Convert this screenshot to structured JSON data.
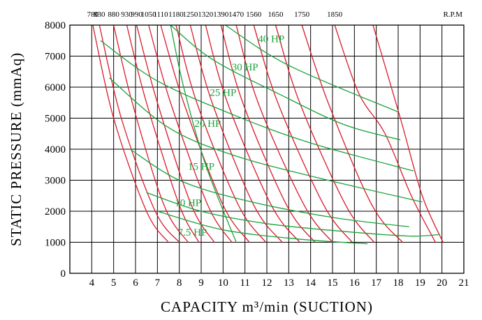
{
  "chart_data": {
    "type": "line",
    "xlabel": "CAPACITY m³/min (SUCTION)",
    "ylabel": "STATIC PRESSURE (mmAq)",
    "xlim": [
      3,
      21
    ],
    "ylim": [
      0,
      8000
    ],
    "x_ticks": [
      4,
      5,
      6,
      7,
      8,
      9,
      10,
      11,
      12,
      13,
      14,
      15,
      16,
      17,
      18,
      19,
      20,
      21
    ],
    "y_ticks": [
      0,
      1000,
      2000,
      3000,
      4000,
      5000,
      6000,
      7000,
      8000
    ],
    "grid": true,
    "rpm_unit_label": "R.P.M",
    "rpm_series": [
      {
        "label": "780",
        "points": [
          [
            4.05,
            8000
          ],
          [
            5.0,
            5000
          ],
          [
            6.5,
            2000
          ],
          [
            7.5,
            1000
          ]
        ]
      },
      {
        "label": "830",
        "points": [
          [
            4.35,
            8000
          ],
          [
            5.35,
            5000
          ],
          [
            6.9,
            2000
          ],
          [
            8.0,
            1000
          ]
        ]
      },
      {
        "label": "880",
        "points": [
          [
            5.0,
            8000
          ],
          [
            5.85,
            5500
          ],
          [
            7.3,
            2200
          ],
          [
            8.4,
            1000
          ]
        ]
      },
      {
        "label": "930",
        "points": [
          [
            5.6,
            8000
          ],
          [
            6.5,
            5500
          ],
          [
            8.0,
            2200
          ],
          [
            8.9,
            1000
          ]
        ]
      },
      {
        "label": "990",
        "points": [
          [
            6.05,
            8000
          ],
          [
            7.0,
            5500
          ],
          [
            8.55,
            2200
          ],
          [
            9.6,
            1000
          ]
        ]
      },
      {
        "label": "1050",
        "points": [
          [
            6.6,
            8000
          ],
          [
            7.6,
            5500
          ],
          [
            9.3,
            2200
          ],
          [
            10.4,
            1000
          ]
        ]
      },
      {
        "label": "1110",
        "points": [
          [
            7.15,
            8000
          ],
          [
            8.2,
            5500
          ],
          [
            10.0,
            2200
          ],
          [
            11.2,
            1000
          ]
        ]
      },
      {
        "label": "1180",
        "points": [
          [
            7.85,
            8000
          ],
          [
            8.8,
            5500
          ],
          [
            10.7,
            2200
          ],
          [
            11.95,
            1000
          ]
        ]
      },
      {
        "label": "1250",
        "points": [
          [
            8.5,
            8000
          ],
          [
            9.5,
            5500
          ],
          [
            11.4,
            2200
          ],
          [
            12.7,
            1000
          ]
        ]
      },
      {
        "label": "1320",
        "points": [
          [
            9.2,
            8000
          ],
          [
            10.2,
            5500
          ],
          [
            12.2,
            2200
          ],
          [
            13.5,
            1000
          ]
        ]
      },
      {
        "label": "1390",
        "points": [
          [
            9.9,
            8000
          ],
          [
            10.9,
            5500
          ],
          [
            12.9,
            2200
          ],
          [
            14.2,
            1000
          ]
        ]
      },
      {
        "label": "1470",
        "points": [
          [
            10.6,
            8000
          ],
          [
            11.6,
            5500
          ],
          [
            13.7,
            2200
          ],
          [
            15.0,
            1000
          ]
        ]
      },
      {
        "label": "1560",
        "points": [
          [
            11.4,
            8000
          ],
          [
            12.5,
            5500
          ],
          [
            14.6,
            2200
          ],
          [
            15.9,
            1000
          ]
        ]
      },
      {
        "label": "1650",
        "points": [
          [
            12.4,
            8000
          ],
          [
            13.5,
            5500
          ],
          [
            15.6,
            2200
          ],
          [
            16.9,
            1000
          ]
        ]
      },
      {
        "label": "1750",
        "points": [
          [
            13.6,
            8000
          ],
          [
            14.8,
            5500
          ],
          [
            16.8,
            2200
          ],
          [
            18.2,
            1000
          ]
        ]
      },
      {
        "label": "1850",
        "points": [
          [
            15.1,
            8000
          ],
          [
            16.2,
            5800
          ],
          [
            17.4,
            4500
          ],
          [
            18.6,
            2500
          ],
          [
            19.7,
            1000
          ]
        ]
      },
      {
        "label": "",
        "points": [
          [
            16.85,
            8000
          ],
          [
            18.1,
            5000
          ],
          [
            19.1,
            2500
          ],
          [
            20.05,
            1000
          ]
        ]
      }
    ],
    "hp_series": [
      {
        "label": "40 HP",
        "label_at": [
          12.2,
          7560
        ],
        "points": [
          [
            10.1,
            8000
          ],
          [
            13.0,
            6700
          ],
          [
            18.0,
            5200
          ]
        ]
      },
      {
        "label": "30 HP",
        "label_at": [
          11.0,
          6650
        ],
        "points": [
          [
            7.6,
            8000
          ],
          [
            9.5,
            6900
          ],
          [
            12.5,
            5800
          ],
          [
            15.5,
            4800
          ],
          [
            18.1,
            4300
          ]
        ]
      },
      {
        "label": "25 HP",
        "label_at": [
          10.0,
          5830
        ],
        "points": [
          [
            4.4,
            7500
          ],
          [
            7.0,
            6200
          ],
          [
            10.5,
            5100
          ],
          [
            14.0,
            4200
          ],
          [
            18.7,
            3300
          ]
        ]
      },
      {
        "label": "20 HP",
        "label_at": [
          9.3,
          4830
        ],
        "points": [
          [
            4.8,
            6300
          ],
          [
            7.5,
            4700
          ],
          [
            10.5,
            3800
          ],
          [
            14.5,
            3050
          ],
          [
            19.1,
            2300
          ]
        ]
      },
      {
        "label": "15 HP",
        "label_at": [
          9.0,
          3450
        ],
        "points": [
          [
            5.75,
            4000
          ],
          [
            8.0,
            3000
          ],
          [
            11.0,
            2350
          ],
          [
            15.0,
            1800
          ],
          [
            18.5,
            1500
          ]
        ]
      },
      {
        "label": "10 HP",
        "label_at": [
          8.4,
          2280
        ],
        "points": [
          [
            6.5,
            2600
          ],
          [
            9.0,
            2000
          ],
          [
            12.0,
            1600
          ],
          [
            15.5,
            1350
          ],
          [
            18.5,
            1200
          ],
          [
            19.9,
            1250
          ]
        ]
      },
      {
        "label": "7.5 HP",
        "label_at": [
          8.6,
          1330
        ],
        "points": [
          [
            7.0,
            2000
          ],
          [
            10.0,
            1400
          ],
          [
            13.5,
            1100
          ],
          [
            16.6,
            950
          ]
        ]
      },
      {
        "label": "",
        "label_at": null,
        "points": [
          [
            7.6,
            8000
          ],
          [
            8.2,
            6000
          ],
          [
            9.2,
            3500
          ],
          [
            10.6,
            1000
          ]
        ]
      }
    ],
    "colors": {
      "rpm": "#d91a2a",
      "hp": "#1aa33a",
      "grid": "#000000"
    }
  }
}
